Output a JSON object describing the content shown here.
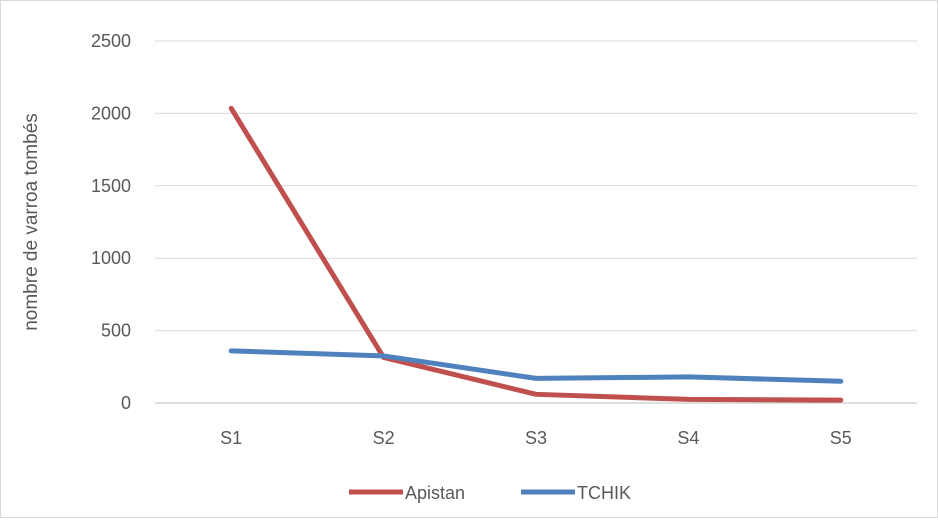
{
  "chart_data": {
    "type": "line",
    "title": "",
    "xlabel": "",
    "ylabel": "nombre de varroa tombés",
    "categories": [
      "S1",
      "S2",
      "S3",
      "S4",
      "S5"
    ],
    "ylim": [
      0,
      2500
    ],
    "yticks": [
      0,
      500,
      1000,
      1500,
      2000,
      2500
    ],
    "grid": true,
    "legend": "bottom",
    "series": [
      {
        "name": "Apistan",
        "color": "#c0504d",
        "values": [
          2035,
          315,
          60,
          25,
          20
        ]
      },
      {
        "name": "TCHIK",
        "color": "#4f81bd",
        "values": [
          360,
          325,
          170,
          180,
          150
        ]
      }
    ]
  }
}
